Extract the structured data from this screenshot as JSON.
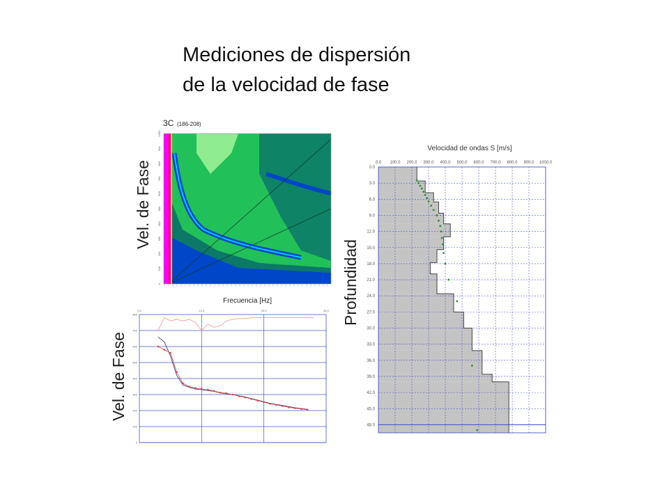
{
  "page": {
    "title_line1": "Mediciones de dispersión",
    "title_line2": "de la velocidad de fase"
  },
  "colors": {
    "grid": "#4a56c8",
    "profile_fill": "#c4c4c4",
    "profile_line": "#444444",
    "points": "#2e8b2e",
    "curve": "#3a3a7a",
    "picks": "#d94a4a"
  },
  "chart_data": [
    {
      "type": "heatmap",
      "title": "3C",
      "subtitle": "(186-208)",
      "xlabel": "Frecuencia [Hz]",
      "ylabel": "Vel. de Fase",
      "ytick_labels": [
        "1000",
        "900",
        "800",
        "700",
        "600",
        "500",
        "400",
        "300",
        "200",
        "100",
        "0"
      ],
      "colormap": [
        "#ff00ff",
        "#ff0066",
        "#ffcc00",
        "#00ff66",
        "#22c058",
        "#0c7868",
        "#0046c8",
        "#00c8ff",
        "#bfffaa"
      ]
    },
    {
      "type": "line",
      "ylabel": "Vel. de Fase",
      "xtick_labels": [
        "0.0",
        "10.0",
        "20.0",
        "30.0"
      ],
      "ytick_labels": [
        "800",
        "700",
        "600",
        "500",
        "400",
        "300",
        "200",
        "100",
        "0"
      ],
      "xlim": [
        0,
        30
      ],
      "ylim": [
        0,
        800
      ],
      "series": [
        {
          "x": [
            3,
            4,
            5,
            6,
            7,
            8,
            9,
            10,
            11,
            12,
            13,
            14,
            15,
            16,
            17,
            18,
            19,
            20,
            21,
            22,
            23,
            24,
            25,
            26,
            27
          ],
          "y": [
            660,
            630,
            540,
            420,
            360,
            345,
            335,
            330,
            325,
            320,
            310,
            305,
            300,
            292,
            285,
            275,
            265,
            255,
            245,
            238,
            232,
            225,
            218,
            212,
            208
          ]
        },
        {
          "x": [
            3,
            4,
            5,
            6,
            7,
            8,
            9,
            10,
            11,
            12,
            13,
            14,
            15,
            16,
            17,
            18,
            19,
            20,
            21,
            22,
            23,
            24,
            25,
            26,
            27
          ],
          "y": [
            600,
            580,
            560,
            440,
            370,
            350,
            340,
            335,
            330,
            322,
            312,
            308,
            300,
            290,
            282,
            272,
            262,
            252,
            242,
            235,
            228,
            220,
            215,
            210,
            205
          ]
        },
        {
          "x": [
            3,
            4,
            5,
            6,
            7,
            8,
            9,
            10,
            11,
            12,
            13,
            14,
            15,
            16,
            17,
            18,
            19,
            20,
            21,
            22,
            23,
            24,
            25,
            26,
            27,
            28
          ],
          "y": [
            700,
            780,
            760,
            770,
            760,
            770,
            750,
            700,
            740,
            720,
            730,
            760,
            770,
            775,
            775,
            780,
            780,
            780,
            780,
            780,
            780,
            780,
            780,
            780,
            780,
            780
          ]
        }
      ]
    },
    {
      "type": "area",
      "title": "Velocidad de ondas S [m/s]",
      "ylabel": "Profundidad",
      "xtick_labels": [
        "0.0",
        "100.0",
        "200.0",
        "300.0",
        "400.0",
        "500.0",
        "600.0",
        "700.0",
        "800.0",
        "900.0",
        "1000.0"
      ],
      "ytick_labels": [
        "0.0",
        "3.0",
        "6.0",
        "9.0",
        "12.0",
        "15.0",
        "18.0",
        "21.0",
        "24.0",
        "27.0",
        "30.0",
        "33.0",
        "36.0",
        "39.0",
        "42.0",
        "45.0",
        "48.0"
      ],
      "xlim": [
        0,
        1000
      ],
      "ylim": [
        49.5,
        0
      ],
      "profile": {
        "velocity": [
          230,
          280,
          330,
          360,
          390,
          430,
          390,
          350,
          310,
          350,
          450,
          510,
          560,
          620,
          680,
          780
        ],
        "top": [
          0,
          2.6,
          4.8,
          6.5,
          8.6,
          10.6,
          13.0,
          15.4,
          17.8,
          19.9,
          23.6,
          27.0,
          30.0,
          34.2,
          38.6,
          40.0
        ],
        "bottom": [
          2.6,
          4.8,
          6.5,
          8.6,
          10.6,
          13.0,
          15.4,
          17.8,
          19.9,
          23.6,
          27.0,
          30.0,
          34.2,
          38.6,
          40.0,
          49.5
        ]
      },
      "points": {
        "velocity": [
          230,
          240,
          250,
          260,
          270,
          280,
          290,
          300,
          315,
          330,
          350,
          360,
          370,
          375,
          380,
          385,
          390,
          400,
          420,
          470,
          560,
          590
        ],
        "depth": [
          2.5,
          3.0,
          3.5,
          4.0,
          4.6,
          5.2,
          5.8,
          6.4,
          7.2,
          8.0,
          9.0,
          10.0,
          11.0,
          12.0,
          13.2,
          14.4,
          16.0,
          18.0,
          21.0,
          25.0,
          37.0,
          49.0
        ]
      }
    }
  ]
}
